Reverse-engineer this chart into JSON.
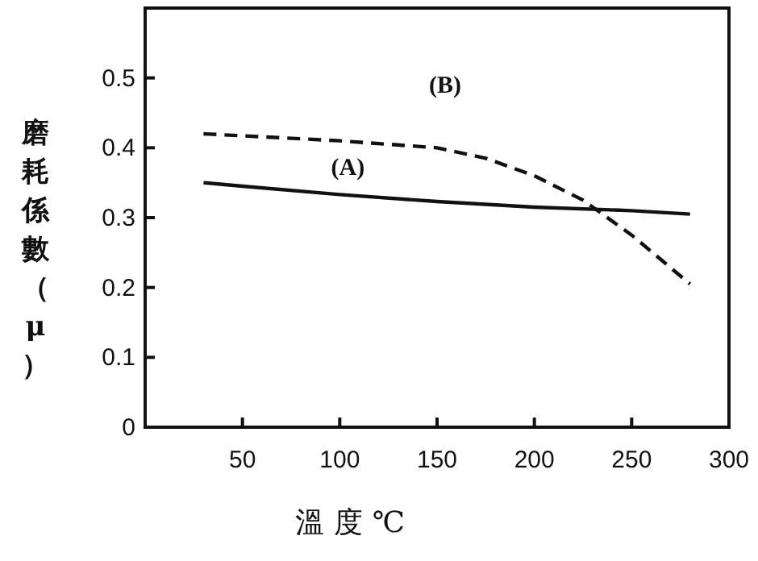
{
  "chart_data": {
    "type": "line",
    "xlabel": "溫度℃",
    "ylabel": "磨耗係數（μ）",
    "xlim": [
      0,
      300
    ],
    "ylim": [
      0,
      0.6
    ],
    "xticks": [
      50,
      100,
      150,
      200,
      250,
      300
    ],
    "yticks": [
      0,
      0.1,
      0.2,
      0.3,
      0.4,
      0.5
    ],
    "grid": false,
    "marker": "none",
    "series": [
      {
        "name": "(A)",
        "color": "#111111",
        "line_style": "solid",
        "x": [
          30,
          50,
          100,
          150,
          200,
          250,
          280
        ],
        "values": [
          0.35,
          0.345,
          0.333,
          0.323,
          0.315,
          0.31,
          0.305
        ]
      },
      {
        "name": "(B)",
        "color": "#111111",
        "line_style": "dashed",
        "x": [
          30,
          100,
          150,
          175,
          200,
          225,
          250,
          280
        ],
        "values": [
          0.42,
          0.41,
          0.4,
          0.385,
          0.36,
          0.325,
          0.275,
          0.205
        ]
      }
    ]
  }
}
